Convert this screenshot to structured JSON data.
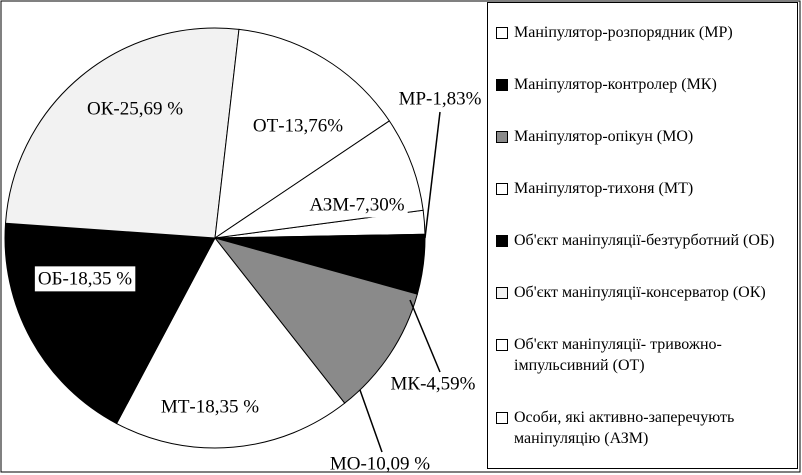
{
  "chart_data": {
    "type": "pie",
    "categories": [
      "Маніпулятор-розпорядник (МР)",
      "Маніпулятор-контролер (МК)",
      "Маніпулятор-опікун (МО)",
      "Маніпулятор-тихоня (МТ)",
      "Об'єкт маніпуляції-безтурботний (ОБ)",
      "Об'єкт маніпуляції-консерватор (ОК)",
      "Об'єкт маніпуляції- тривожно-імпульсивний (ОТ)",
      "Особи, які активно-заперечують маніпуляцію (АЗМ)"
    ],
    "values": [
      1.83,
      4.59,
      10.09,
      18.35,
      18.35,
      25.69,
      13.76,
      7.3
    ],
    "value_labels": [
      "МР-1,83%",
      "МК-4,59%",
      "МО-10,09 %",
      "МТ-18,35 %",
      "ОБ-18,35 %",
      "ОК-25,69 %",
      "ОТ-13,76%",
      "АЗМ-7,30%"
    ],
    "colors": [
      "#ffffff",
      "#000000",
      "#8a8a8a",
      "#ffffff",
      "#000000",
      "#f2f2f2",
      "#ffffff",
      "#ffffff"
    ]
  }
}
